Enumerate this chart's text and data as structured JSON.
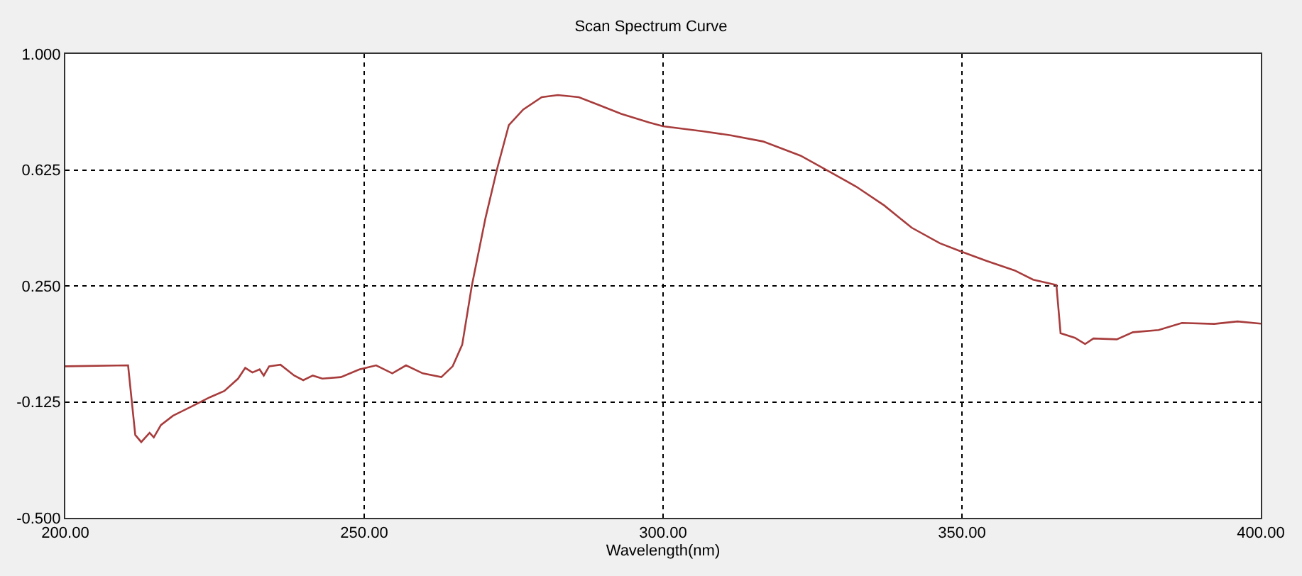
{
  "chart_data": {
    "type": "line",
    "title": "Scan Spectrum Curve",
    "xlabel": "Wavelength(nm)",
    "xlim": [
      200,
      400
    ],
    "xticks": [
      {
        "value": 200,
        "label": "200.00"
      },
      {
        "value": 250,
        "label": "250.00"
      },
      {
        "value": 300,
        "label": "300.00"
      },
      {
        "value": 350,
        "label": "350.00"
      },
      {
        "value": 400,
        "label": "400.00"
      }
    ],
    "ylim": [
      -0.5,
      1.0
    ],
    "yticks": [
      {
        "value": -0.5,
        "label": "-0.500"
      },
      {
        "value": -0.125,
        "label": "-0.125"
      },
      {
        "value": 0.25,
        "label": "0.250"
      },
      {
        "value": 0.625,
        "label": "0.625"
      },
      {
        "value": 1.0,
        "label": "1.000"
      }
    ],
    "grid": true,
    "line_style": "solid",
    "marker": "none",
    "series": [
      {
        "color": "#a83c3c",
        "x": [
          200,
          210.5,
          211.7,
          212.7,
          214.1,
          214.8,
          216,
          218,
          221.1,
          224.2,
          226.6,
          228.9,
          230.1,
          231.3,
          232.5,
          233.2,
          234.1,
          236,
          238.3,
          239.8,
          241.4,
          243,
          246.1,
          249.2,
          252,
          254.7,
          257,
          259.8,
          262.9,
          264.8,
          266.4,
          268,
          270.3,
          272.3,
          274.2,
          276.6,
          279.7,
          282.4,
          285.9,
          289.1,
          293,
          297.7,
          300,
          306.6,
          311.3,
          316.7,
          323,
          327.6,
          332.3,
          337,
          341.6,
          346.3,
          350,
          354.1,
          358.8,
          361.9,
          365.8,
          366.5,
          368.9,
          370.6,
          372,
          375.9,
          378.6,
          382.9,
          386.8,
          392.2,
          396.1,
          400
        ],
        "values": [
          -0.01,
          -0.007,
          -0.232,
          -0.255,
          -0.225,
          -0.24,
          -0.2,
          -0.17,
          -0.14,
          -0.11,
          -0.09,
          -0.05,
          -0.015,
          -0.03,
          -0.02,
          -0.04,
          -0.01,
          -0.005,
          -0.04,
          -0.055,
          -0.04,
          -0.05,
          -0.045,
          -0.02,
          -0.007,
          -0.033,
          -0.007,
          -0.033,
          -0.045,
          -0.01,
          0.06,
          0.25,
          0.47,
          0.633,
          0.77,
          0.82,
          0.86,
          0.867,
          0.86,
          0.836,
          0.806,
          0.778,
          0.766,
          0.75,
          0.737,
          0.717,
          0.671,
          0.622,
          0.571,
          0.51,
          0.438,
          0.388,
          0.36,
          0.331,
          0.3,
          0.27,
          0.253,
          0.097,
          0.082,
          0.062,
          0.08,
          0.077,
          0.1,
          0.107,
          0.13,
          0.127,
          0.135,
          0.128
        ]
      }
    ]
  }
}
